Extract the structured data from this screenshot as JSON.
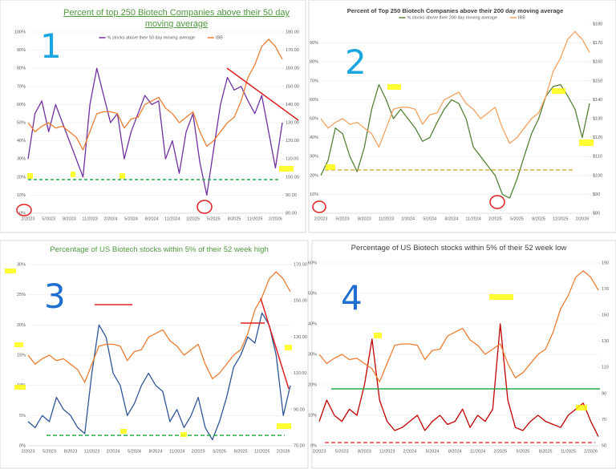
{
  "chart_data": [
    {
      "type": "line",
      "title": "Percent of top 250 Biotech Companies above their 50 day moving average",
      "annotation": "1",
      "categories": [
        "2/2023",
        null,
        null,
        "5/2023",
        null,
        null,
        "8/2023",
        null,
        null,
        "11/2023",
        null,
        null,
        "2/2024",
        null,
        null,
        "5/2024",
        null,
        null,
        "8/2024",
        null,
        null,
        "11/2024",
        null,
        null,
        "2/2025",
        null,
        null,
        "5/2025",
        null,
        null,
        "8/2025",
        null,
        null,
        "11/2025",
        null,
        null,
        "2/2026",
        null
      ],
      "series": [
        {
          "name": "% stocks above their 50 day moving average",
          "color": "#7030a0",
          "values": [
            30,
            55,
            62,
            45,
            60,
            50,
            40,
            30,
            20,
            60,
            80,
            65,
            50,
            55,
            30,
            45,
            55,
            65,
            60,
            62,
            30,
            40,
            22,
            45,
            55,
            28,
            10,
            35,
            60,
            75,
            68,
            70,
            62,
            55,
            65,
            45,
            25,
            50
          ]
        },
        {
          "name": "IBB",
          "color": "#ed7d31",
          "axis": "y2",
          "values": [
            130,
            125,
            128,
            130,
            127,
            128,
            125,
            122,
            115,
            125,
            135,
            136,
            136,
            135,
            127,
            132,
            133,
            140,
            142,
            144,
            138,
            135,
            130,
            133,
            136,
            125,
            117,
            120,
            125,
            130,
            133,
            142,
            155,
            162,
            172,
            176,
            172,
            165
          ]
        }
      ],
      "ylim": [
        0,
        100
      ],
      "yticks": [
        {
          "value": 0,
          "label": "0%"
        },
        {
          "value": 10,
          "label": "10%"
        },
        {
          "value": 20,
          "label": "20%"
        },
        {
          "value": 30,
          "label": "30%"
        },
        {
          "value": 40,
          "label": "40%"
        },
        {
          "value": 50,
          "label": "50%"
        },
        {
          "value": 60,
          "label": "60%"
        },
        {
          "value": 70,
          "label": "70%"
        },
        {
          "value": 80,
          "label": "80%"
        },
        {
          "value": 90,
          "label": "90%"
        },
        {
          "value": 100,
          "label": "100%"
        }
      ],
      "y2lim": [
        80,
        180
      ],
      "y2ticks": [
        {
          "value": 80,
          "label": "80.00"
        },
        {
          "value": 90,
          "label": "90.00"
        },
        {
          "value": 100,
          "label": "100.00"
        },
        {
          "value": 110,
          "label": "110.00"
        },
        {
          "value": 120,
          "label": "120.00"
        },
        {
          "value": 130,
          "label": "130.00"
        },
        {
          "value": 140,
          "label": "140.00"
        },
        {
          "value": 150,
          "label": "150.00"
        },
        {
          "value": 160,
          "label": "160.00"
        },
        {
          "value": 170,
          "label": "170.00"
        },
        {
          "value": 180,
          "label": "180.00"
        }
      ]
    },
    {
      "type": "line",
      "title": "Percent of Top 250 Biotech Companies above their 200 day moving average",
      "annotation": "2",
      "categories": [
        "2/2023",
        null,
        null,
        "5/2023",
        null,
        null,
        "8/2023",
        null,
        null,
        "11/2023",
        null,
        null,
        "2/2024",
        null,
        null,
        "5/2024",
        null,
        null,
        "8/2024",
        null,
        null,
        "11/2024",
        null,
        null,
        "2/2025",
        null,
        null,
        "5/2025",
        null,
        null,
        "8/2025",
        null,
        null,
        "11/2025",
        null,
        null,
        "2/2026",
        null
      ],
      "series": [
        {
          "name": "% stocks above their 200 day moving average",
          "color": "#548235",
          "values": [
            20,
            28,
            45,
            42,
            30,
            22,
            35,
            55,
            68,
            60,
            50,
            55,
            50,
            45,
            38,
            40,
            48,
            55,
            60,
            58,
            50,
            35,
            30,
            25,
            20,
            10,
            8,
            18,
            30,
            42,
            50,
            62,
            67,
            68,
            62,
            55,
            40,
            58
          ]
        },
        {
          "name": "IBB",
          "color": "#f4a261",
          "axis": "y2",
          "values": [
            130,
            125,
            128,
            130,
            127,
            128,
            125,
            122,
            115,
            125,
            135,
            136,
            136,
            135,
            127,
            132,
            133,
            140,
            142,
            144,
            138,
            135,
            130,
            133,
            136,
            125,
            117,
            120,
            125,
            130,
            133,
            142,
            155,
            162,
            172,
            176,
            172,
            165
          ]
        }
      ],
      "ylim": [
        0,
        100
      ],
      "yticks": [
        {
          "value": 10,
          "label": "10%"
        },
        {
          "value": 20,
          "label": "20%"
        },
        {
          "value": 30,
          "label": "30%"
        },
        {
          "value": 40,
          "label": "40%"
        },
        {
          "value": 50,
          "label": "50%"
        },
        {
          "value": 60,
          "label": "60%"
        },
        {
          "value": 70,
          "label": "70%"
        },
        {
          "value": 80,
          "label": "80%"
        },
        {
          "value": 90,
          "label": "90%"
        }
      ],
      "y2lim": [
        80,
        180
      ],
      "y2ticks": [
        {
          "value": 80,
          "label": "$80"
        },
        {
          "value": 90,
          "label": "$90"
        },
        {
          "value": 100,
          "label": "$100"
        },
        {
          "value": 110,
          "label": "$110"
        },
        {
          "value": 120,
          "label": "$120"
        },
        {
          "value": 130,
          "label": "$130"
        },
        {
          "value": 140,
          "label": "$140"
        },
        {
          "value": 150,
          "label": "$150"
        },
        {
          "value": 160,
          "label": "$160"
        },
        {
          "value": 170,
          "label": "$170"
        },
        {
          "value": 180,
          "label": "$180"
        }
      ]
    },
    {
      "type": "line",
      "title": "Percentage of US Biotech stocks within 5% of their 52 week high",
      "annotation": "3",
      "categories": [
        "2/2023",
        null,
        null,
        "5/2023",
        null,
        null,
        "8/2023",
        null,
        null,
        "11/2023",
        null,
        null,
        "2/2024",
        null,
        null,
        "5/2024",
        null,
        null,
        "8/2024",
        null,
        null,
        "11/2024",
        null,
        null,
        "2/2025",
        null,
        null,
        "5/2025",
        null,
        null,
        "8/2025",
        null,
        null,
        "11/2025",
        null,
        null,
        "2/2026",
        null
      ],
      "series": [
        {
          "color": "#2f5597",
          "values": [
            4,
            3,
            5,
            4,
            8,
            6,
            5,
            3,
            2,
            12,
            20,
            18,
            12,
            10,
            5,
            7,
            10,
            12,
            10,
            9,
            4,
            6,
            3,
            5,
            8,
            3,
            1,
            4,
            8,
            13,
            15,
            18,
            17,
            22,
            20,
            15,
            5,
            10
          ]
        },
        {
          "color": "#ed7d31",
          "axis": "y2",
          "values": [
            120,
            115,
            118,
            120,
            117,
            118,
            115,
            112,
            105,
            115,
            125,
            126,
            126,
            125,
            117,
            122,
            123,
            130,
            132,
            134,
            128,
            125,
            120,
            123,
            126,
            115,
            107,
            110,
            115,
            120,
            123,
            132,
            145,
            152,
            162,
            166,
            162,
            155
          ]
        }
      ],
      "ylim": [
        0,
        30
      ],
      "yticks": [
        {
          "value": 0,
          "label": "0%"
        },
        {
          "value": 5,
          "label": "5%"
        },
        {
          "value": 10,
          "label": "10%"
        },
        {
          "value": 15,
          "label": "15%"
        },
        {
          "value": 20,
          "label": "20%"
        },
        {
          "value": 25,
          "label": "25%"
        },
        {
          "value": 30,
          "label": "30%"
        }
      ],
      "y2lim": [
        70,
        170
      ],
      "y2ticks": [
        {
          "value": 70,
          "label": "70.00"
        },
        {
          "value": 90,
          "label": "90.00"
        },
        {
          "value": 110,
          "label": "110.00"
        },
        {
          "value": 130,
          "label": "130.00"
        },
        {
          "value": 150,
          "label": "150.00"
        },
        {
          "value": 170,
          "label": "170.00"
        }
      ]
    },
    {
      "type": "line",
      "title": "Percentage of US Biotech stocks within 5% of their 52 week low",
      "annotation": "4",
      "categories": [
        "2/2023",
        null,
        null,
        "5/2023",
        null,
        null,
        "8/2023",
        null,
        null,
        "11/2023",
        null,
        null,
        "2/2024",
        null,
        null,
        "5/2024",
        null,
        null,
        "8/2024",
        null,
        null,
        "11/2024",
        null,
        null,
        "2/2025",
        null,
        null,
        "5/2025",
        null,
        null,
        "8/2025",
        null,
        null,
        "11/2025",
        null,
        null,
        "2/2026",
        null
      ],
      "series": [
        {
          "color": "#c00000",
          "values": [
            8,
            15,
            10,
            8,
            12,
            10,
            20,
            35,
            15,
            8,
            5,
            6,
            8,
            10,
            5,
            8,
            10,
            7,
            8,
            12,
            6,
            10,
            8,
            12,
            40,
            15,
            6,
            5,
            8,
            10,
            8,
            7,
            6,
            10,
            12,
            14,
            8,
            3
          ]
        },
        {
          "color": "#ed7d31",
          "axis": "y2",
          "values": [
            120,
            113,
            117,
            120,
            116,
            117,
            113,
            109,
            99,
            113,
            127,
            128,
            128,
            127,
            116,
            123,
            124,
            134,
            137,
            140,
            131,
            127,
            120,
            124,
            128,
            113,
            102,
            106,
            113,
            120,
            124,
            137,
            155,
            165,
            179,
            184,
            179,
            169
          ]
        }
      ],
      "ylim": [
        0,
        60
      ],
      "yticks": [
        {
          "value": 0,
          "label": "0%"
        },
        {
          "value": 10,
          "label": "10%"
        },
        {
          "value": 20,
          "label": "20%"
        },
        {
          "value": 30,
          "label": "30%"
        },
        {
          "value": 40,
          "label": "40%"
        },
        {
          "value": 50,
          "label": "50%"
        },
        {
          "value": 60,
          "label": "60%"
        }
      ],
      "y2lim": [
        50,
        190
      ],
      "y2ticks": [
        50,
        70,
        90,
        110,
        130,
        150,
        170,
        190
      ]
    }
  ]
}
